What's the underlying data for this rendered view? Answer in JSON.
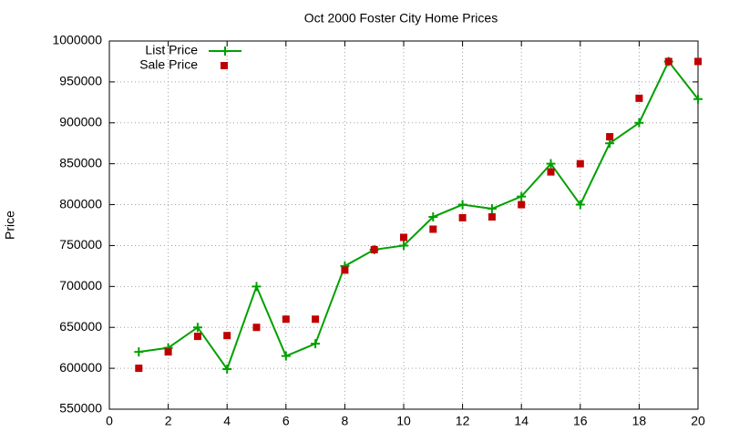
{
  "chart_data": {
    "type": "line",
    "title": "Oct 2000 Foster City Home Prices",
    "y_label": "Price",
    "x": [
      1,
      2,
      3,
      4,
      5,
      6,
      7,
      8,
      9,
      10,
      11,
      12,
      13,
      14,
      15,
      16,
      17,
      18,
      19,
      20
    ],
    "series": [
      {
        "name": "List Price",
        "color": "#00a000",
        "style": "linespoints",
        "values": [
          620000,
          625000,
          650000,
          599000,
          700000,
          615000,
          630000,
          725000,
          745000,
          750000,
          785000,
          800000,
          795000,
          810000,
          850000,
          800000,
          875000,
          900000,
          975000,
          929000
        ]
      },
      {
        "name": "Sale Price",
        "color": "#c00000",
        "style": "points",
        "values": [
          600000,
          620000,
          639000,
          640000,
          650000,
          660000,
          660000,
          720000,
          745000,
          760000,
          770000,
          784000,
          785000,
          800000,
          840000,
          850000,
          883000,
          930000,
          975000,
          975000
        ]
      }
    ],
    "xlim": [
      0,
      20
    ],
    "xticks": [
      0,
      2,
      4,
      6,
      8,
      10,
      12,
      14,
      16,
      18,
      20
    ],
    "ylim": [
      550000,
      1000000
    ],
    "yticks": [
      550000,
      600000,
      650000,
      700000,
      750000,
      800000,
      850000,
      900000,
      950000,
      1000000
    ],
    "grid": true,
    "legend": "top-left"
  }
}
